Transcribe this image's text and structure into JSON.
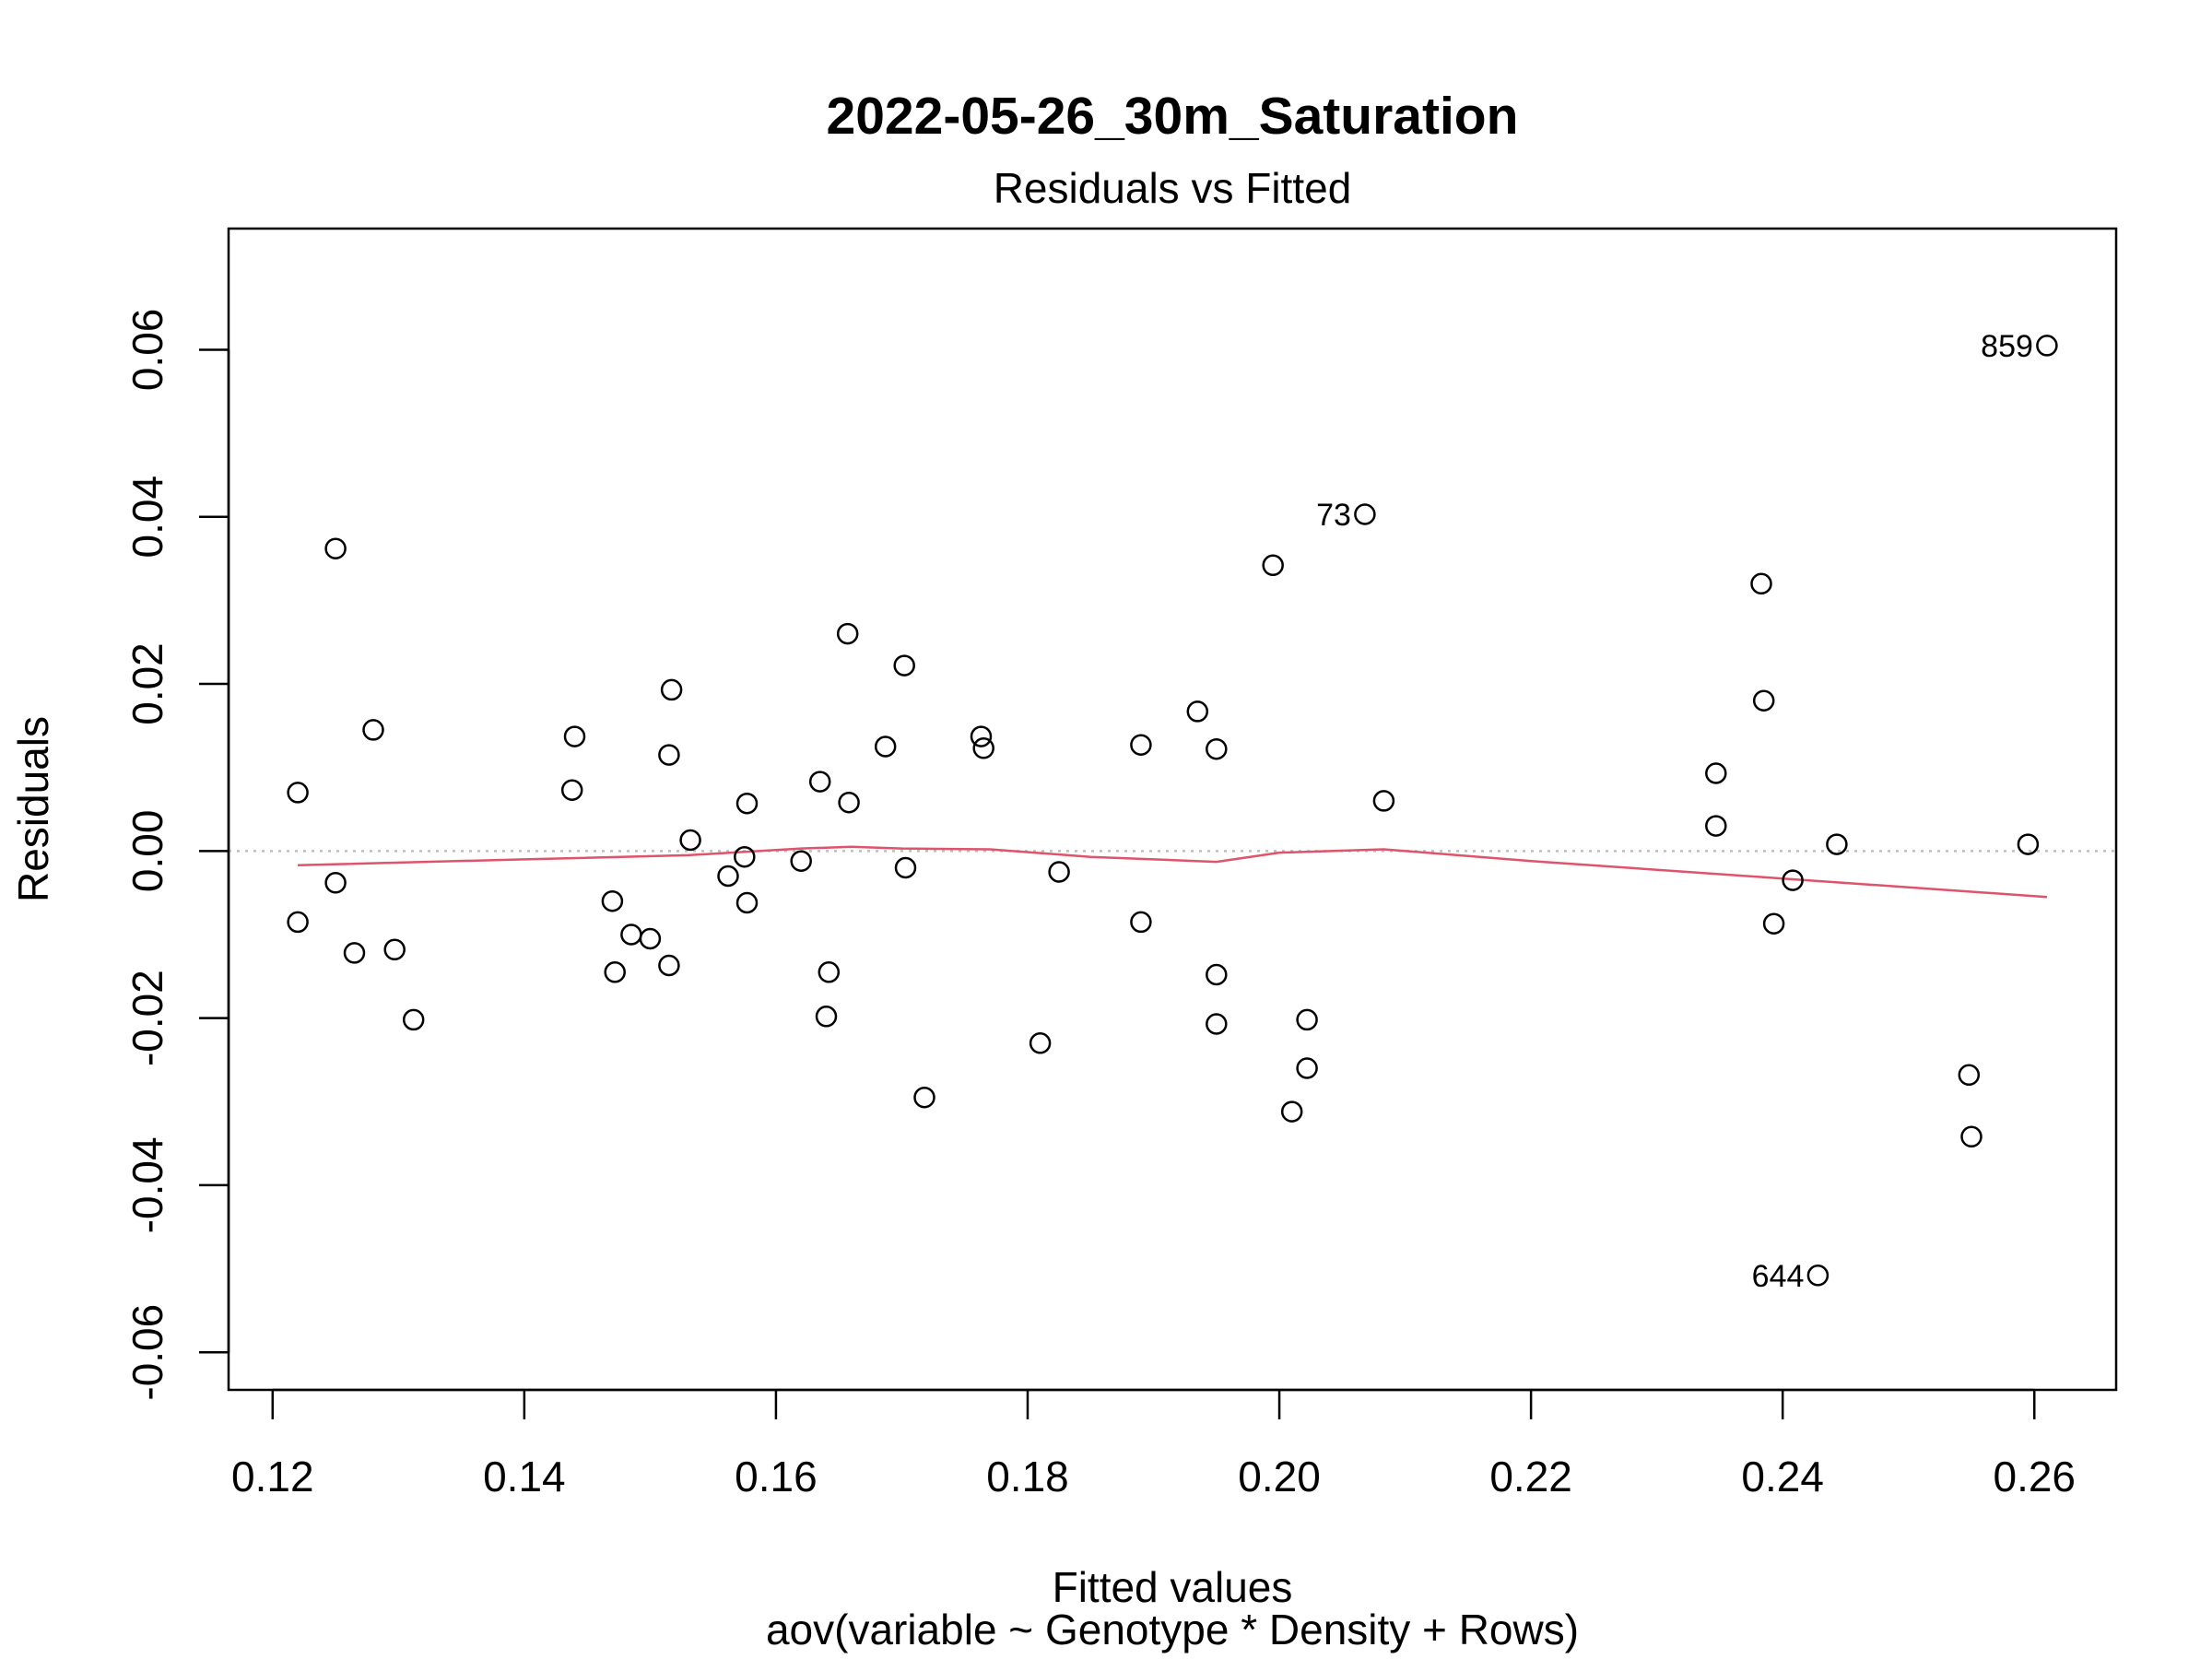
{
  "chart_data": {
    "type": "scatter",
    "title": "2022-05-26_30m_Saturation",
    "subtitle": "Residuals vs Fitted",
    "xlabel": "Fitted values",
    "ylabel": "Residuals",
    "caption": "aov(variable ~ Genotype * Density + Rows)",
    "xlim": [
      0.1165,
      0.2665
    ],
    "ylim": [
      -0.0645,
      0.0745
    ],
    "x_ticks": [
      "0.12",
      "0.14",
      "0.16",
      "0.18",
      "0.20",
      "0.22",
      "0.24",
      "0.26"
    ],
    "y_ticks": [
      "-0.06",
      "-0.04",
      "-0.02",
      "0.00",
      "0.02",
      "0.04",
      "0.06"
    ],
    "grid": false,
    "reference_line": {
      "y": 0,
      "style": "dotted",
      "color": "#BEBEBE"
    },
    "colors": {
      "points": "#000000",
      "smoother": "#DF536B",
      "reference": "#BEBEBE"
    },
    "points": [
      {
        "x": 0.122,
        "y": 0.007
      },
      {
        "x": 0.122,
        "y": -0.0085
      },
      {
        "x": 0.125,
        "y": 0.0362
      },
      {
        "x": 0.125,
        "y": -0.0038
      },
      {
        "x": 0.1265,
        "y": -0.0122
      },
      {
        "x": 0.128,
        "y": 0.0145
      },
      {
        "x": 0.1297,
        "y": -0.0118
      },
      {
        "x": 0.1312,
        "y": -0.0202
      },
      {
        "x": 0.1438,
        "y": 0.0073
      },
      {
        "x": 0.144,
        "y": 0.0137
      },
      {
        "x": 0.147,
        "y": -0.006
      },
      {
        "x": 0.1472,
        "y": -0.0145
      },
      {
        "x": 0.1485,
        "y": -0.01
      },
      {
        "x": 0.15,
        "y": -0.0105
      },
      {
        "x": 0.1515,
        "y": 0.0115
      },
      {
        "x": 0.1515,
        "y": -0.0137
      },
      {
        "x": 0.1517,
        "y": 0.0193
      },
      {
        "x": 0.1532,
        "y": 0.0013
      },
      {
        "x": 0.1562,
        "y": -0.003
      },
      {
        "x": 0.1575,
        "y": -0.0007
      },
      {
        "x": 0.1577,
        "y": 0.0057
      },
      {
        "x": 0.1577,
        "y": -0.0062
      },
      {
        "x": 0.162,
        "y": -0.0012
      },
      {
        "x": 0.1635,
        "y": 0.0083
      },
      {
        "x": 0.164,
        "y": -0.0198
      },
      {
        "x": 0.1642,
        "y": -0.0145
      },
      {
        "x": 0.1657,
        "y": 0.026
      },
      {
        "x": 0.1658,
        "y": 0.0058
      },
      {
        "x": 0.1687,
        "y": 0.0125
      },
      {
        "x": 0.1702,
        "y": 0.0222
      },
      {
        "x": 0.1703,
        "y": -0.002
      },
      {
        "x": 0.1718,
        "y": -0.0295
      },
      {
        "x": 0.1763,
        "y": 0.0137
      },
      {
        "x": 0.1765,
        "y": 0.0123
      },
      {
        "x": 0.181,
        "y": -0.023
      },
      {
        "x": 0.1825,
        "y": -0.0025
      },
      {
        "x": 0.189,
        "y": 0.0127
      },
      {
        "x": 0.189,
        "y": -0.0085
      },
      {
        "x": 0.1935,
        "y": 0.0167
      },
      {
        "x": 0.195,
        "y": 0.0122
      },
      {
        "x": 0.195,
        "y": -0.0148
      },
      {
        "x": 0.195,
        "y": -0.0207
      },
      {
        "x": 0.1995,
        "y": 0.0342
      },
      {
        "x": 0.201,
        "y": -0.0312
      },
      {
        "x": 0.2022,
        "y": -0.0202
      },
      {
        "x": 0.2022,
        "y": -0.026
      },
      {
        "x": 0.2068,
        "y": 0.0403,
        "label": "73"
      },
      {
        "x": 0.2083,
        "y": 0.006
      },
      {
        "x": 0.2347,
        "y": 0.0093
      },
      {
        "x": 0.2347,
        "y": 0.003
      },
      {
        "x": 0.2383,
        "y": 0.032
      },
      {
        "x": 0.2385,
        "y": 0.018
      },
      {
        "x": 0.2393,
        "y": -0.0087
      },
      {
        "x": 0.2408,
        "y": -0.0035
      },
      {
        "x": 0.2428,
        "y": -0.0508,
        "label": "644"
      },
      {
        "x": 0.2443,
        "y": 0.0008
      },
      {
        "x": 0.2548,
        "y": -0.0268
      },
      {
        "x": 0.255,
        "y": -0.0342
      },
      {
        "x": 0.2595,
        "y": 0.0008
      },
      {
        "x": 0.261,
        "y": 0.0605,
        "label": "859"
      }
    ],
    "smoother": {
      "x": [
        0.122,
        0.14,
        0.153,
        0.162,
        0.166,
        0.17,
        0.177,
        0.185,
        0.195,
        0.2,
        0.2083,
        0.22,
        0.24,
        0.261
      ],
      "y": [
        -0.0017,
        -0.001,
        -0.0005,
        0.0003,
        0.0005,
        0.0003,
        0.0002,
        -0.0007,
        -0.0013,
        -0.0002,
        0.0002,
        -0.0012,
        -0.0033,
        -0.0055
      ]
    }
  }
}
